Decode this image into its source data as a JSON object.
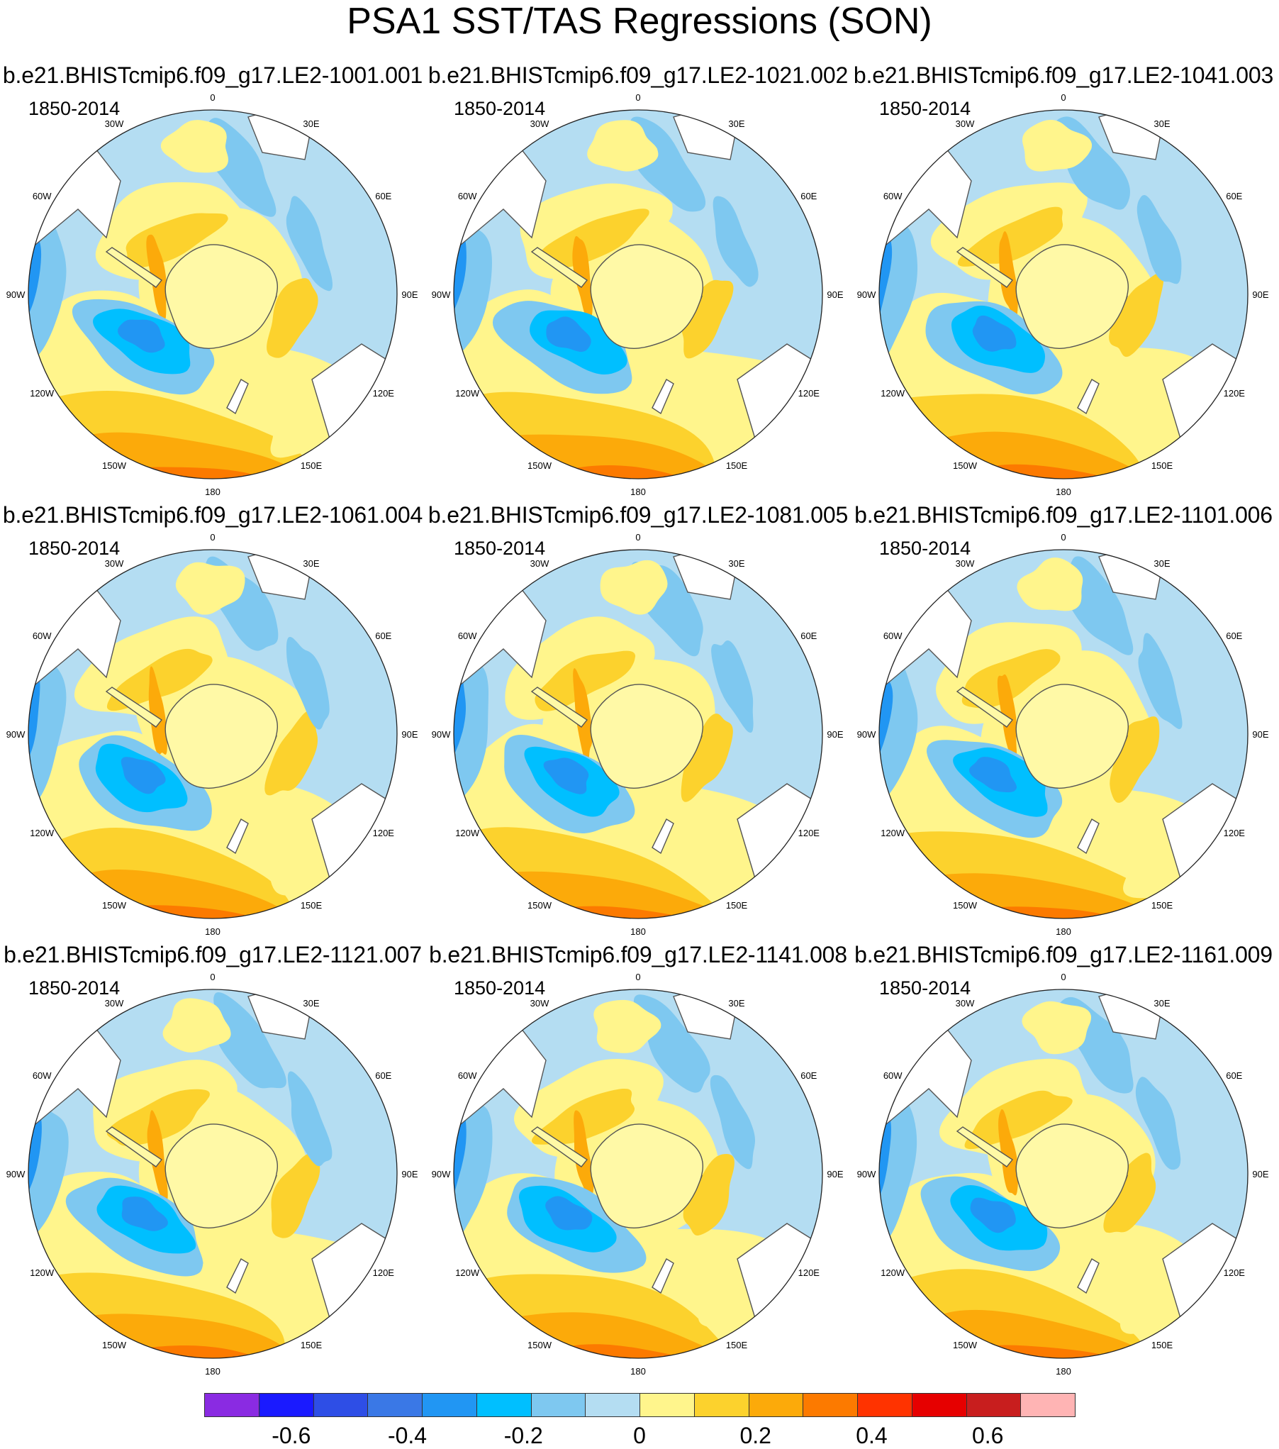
{
  "title": "PSA1 SST/TAS Regressions (SON)",
  "panels": [
    {
      "title": "b.e21.BHISTcmip6.f09_g17.LE2-1001.001",
      "period": "1850-2014"
    },
    {
      "title": "b.e21.BHISTcmip6.f09_g17.LE2-1021.002",
      "period": "1850-2014"
    },
    {
      "title": "b.e21.BHISTcmip6.f09_g17.LE2-1041.003",
      "period": "1850-2014"
    },
    {
      "title": "b.e21.BHISTcmip6.f09_g17.LE2-1061.004",
      "period": "1850-2014"
    },
    {
      "title": "b.e21.BHISTcmip6.f09_g17.LE2-1081.005",
      "period": "1850-2014"
    },
    {
      "title": "b.e21.BHISTcmip6.f09_g17.LE2-1101.006",
      "period": "1850-2014"
    },
    {
      "title": "b.e21.BHISTcmip6.f09_g17.LE2-1121.007",
      "period": "1850-2014"
    },
    {
      "title": "b.e21.BHISTcmip6.f09_g17.LE2-1141.008",
      "period": "1850-2014"
    },
    {
      "title": "b.e21.BHISTcmip6.f09_g17.LE2-1161.009",
      "period": "1850-2014"
    }
  ],
  "longitude_labels": [
    "0",
    "30E",
    "60E",
    "90E",
    "120E",
    "150E",
    "180",
    "150W",
    "120W",
    "90W",
    "60W",
    "30W"
  ],
  "map_projection": "polar stereographic, South Pole centered",
  "colorbar": {
    "colors": [
      "#8a2be2",
      "#1a1aff",
      "#2e4ee6",
      "#3a78e6",
      "#2196f3",
      "#00bfff",
      "#7ec8f0",
      "#b4ddf2",
      "#fff58c",
      "#fcd22d",
      "#fcaa0a",
      "#fc7a00",
      "#ff3300",
      "#e60000",
      "#c81e1e",
      "#ffb4b4"
    ],
    "tick_labels": [
      "-0.6",
      "-0.4",
      "-0.2",
      "0",
      "0.2",
      "0.4",
      "0.6"
    ],
    "tick_values": [
      -0.6,
      -0.4,
      -0.2,
      0,
      0.2,
      0.4,
      0.6
    ],
    "range": [
      -0.75,
      0.75
    ],
    "step": 0.1
  },
  "field_colors": {
    "pos_light": "#fff58c",
    "pos_mid": "#fcd22d",
    "pos_strong": "#fcaa0a",
    "pos_stronger": "#fc7a00",
    "neg_light": "#b4ddf2",
    "neg_mid": "#7ec8f0",
    "neg_strong": "#00bfff",
    "neg_stronger": "#2196f3",
    "neg_deep": "#3a78e6",
    "land": "#ffffff",
    "coast": "#555555"
  }
}
